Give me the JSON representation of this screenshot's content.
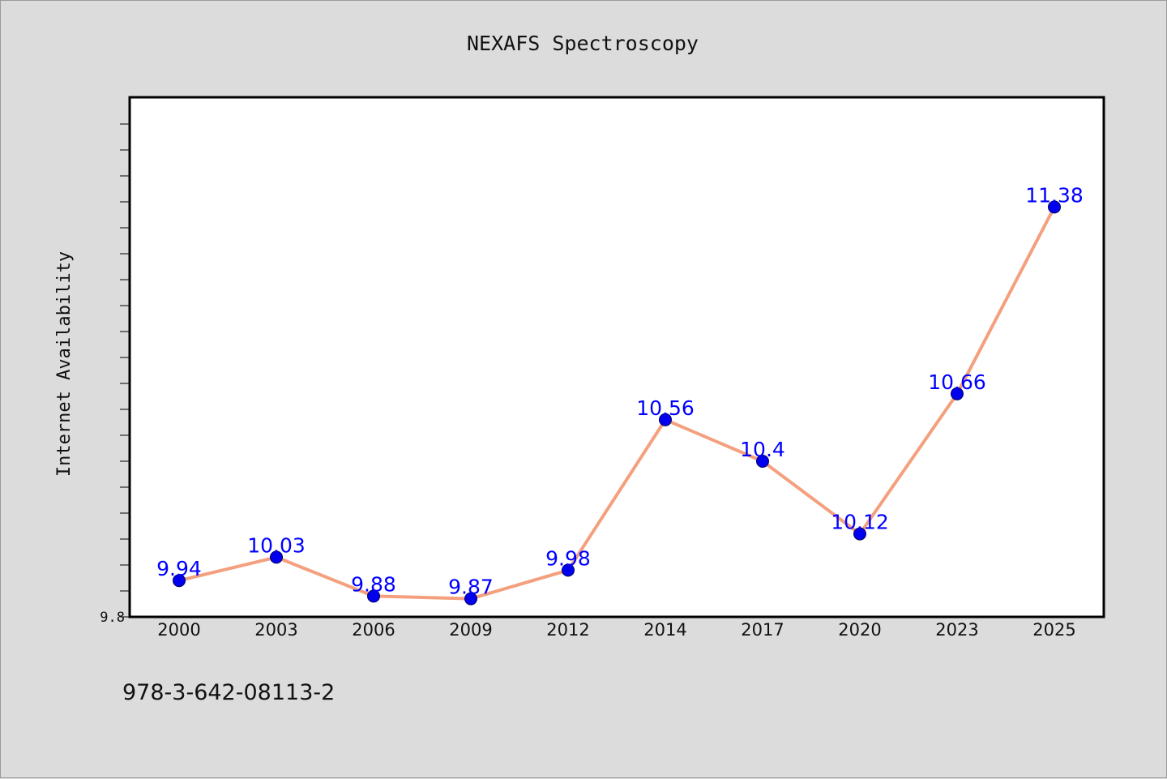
{
  "footnote": "978-3-642-08113-2",
  "colors": {
    "background": "#dcdcdc",
    "plot_background": "#ffffff",
    "line": "#f4a07e",
    "marker": "#0000ee",
    "data_label": "#0000ff"
  },
  "chart_data": {
    "type": "line",
    "title": "NEXAFS Spectroscopy",
    "xlabel": "",
    "ylabel": "Internet Availability",
    "categories": [
      "2000",
      "2003",
      "2006",
      "2009",
      "2012",
      "2014",
      "2017",
      "2020",
      "2023",
      "2025"
    ],
    "series": [
      {
        "values": [
          9.94,
          10.03,
          9.88,
          9.87,
          9.98,
          10.56,
          10.4,
          10.12,
          10.66,
          11.38
        ],
        "labels": [
          "9.94",
          "10.03",
          "9.88",
          "9.87",
          "9.98",
          "10.56",
          "10.4",
          "10.12",
          "10.66",
          "11.38"
        ]
      }
    ],
    "ylim": [
      9.8,
      11.8
    ],
    "ytick_labels": [
      "9.8"
    ],
    "ytick_step": 0.1,
    "grid": false,
    "legend": "none"
  }
}
